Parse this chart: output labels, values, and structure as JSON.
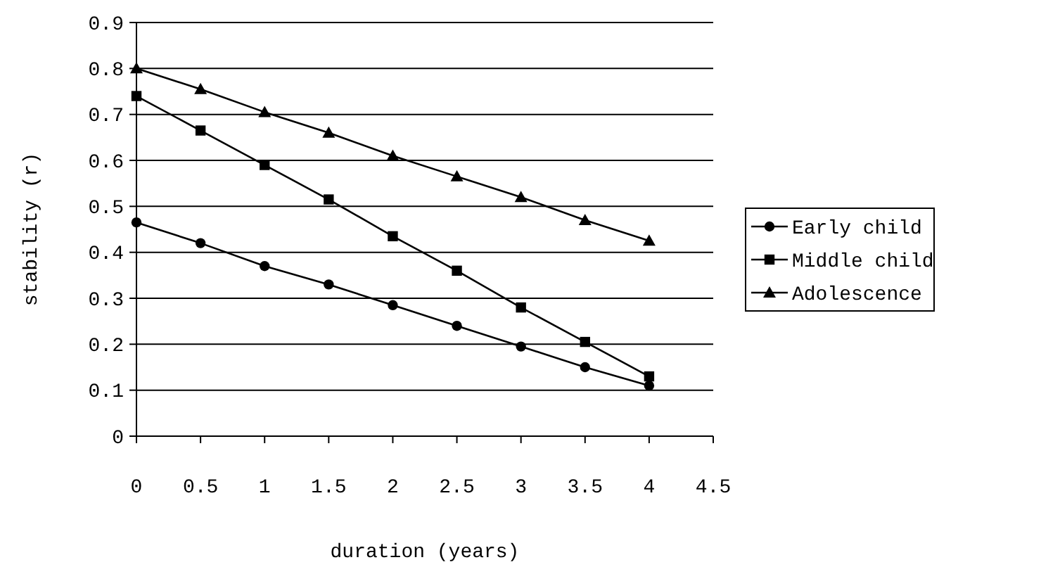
{
  "chart_data": {
    "type": "line",
    "xlabel": "duration (years)",
    "ylabel": "stability (r)",
    "x": [
      0,
      0.5,
      1,
      1.5,
      2,
      2.5,
      3,
      3.5,
      4
    ],
    "series": [
      {
        "name": "Early child",
        "color": "#000000",
        "marker": "circle",
        "values": [
          0.465,
          0.42,
          0.37,
          0.33,
          0.285,
          0.24,
          0.195,
          0.15,
          0.11
        ]
      },
      {
        "name": "Middle child",
        "color": "#000000",
        "marker": "square",
        "values": [
          0.74,
          0.665,
          0.59,
          0.515,
          0.435,
          0.36,
          0.28,
          0.205,
          0.13
        ]
      },
      {
        "name": "Adolescence",
        "color": "#000000",
        "marker": "triangle",
        "values": [
          0.8,
          0.755,
          0.705,
          0.66,
          0.61,
          0.565,
          0.52,
          0.47,
          0.425
        ]
      }
    ],
    "xlim": [
      0,
      4.5
    ],
    "xticks": [
      0,
      0.5,
      1,
      1.5,
      2,
      2.5,
      3,
      3.5,
      4,
      4.5
    ],
    "ylim": [
      0,
      0.9
    ],
    "yticks": [
      0,
      0.1,
      0.2,
      0.3,
      0.4,
      0.5,
      0.6,
      0.7,
      0.8,
      0.9
    ],
    "grid": "y",
    "legend": "right"
  }
}
